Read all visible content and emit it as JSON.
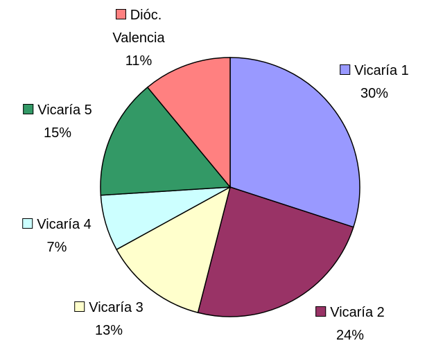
{
  "chart_data": {
    "type": "pie",
    "categories": [
      "Vicaría 1",
      "Vicaría 2",
      "Vicaría 3",
      "Vicaría 4",
      "Vicaría 5",
      "Dióc. Valencia"
    ],
    "values": [
      30,
      24,
      13,
      7,
      15,
      11
    ],
    "value_labels": [
      "30%",
      "24%",
      "13%",
      "7%",
      "15%",
      "11%"
    ],
    "colors": [
      "#9999ff",
      "#993366",
      "#ffffcc",
      "#ccffff",
      "#339966",
      "#ff8080"
    ]
  }
}
